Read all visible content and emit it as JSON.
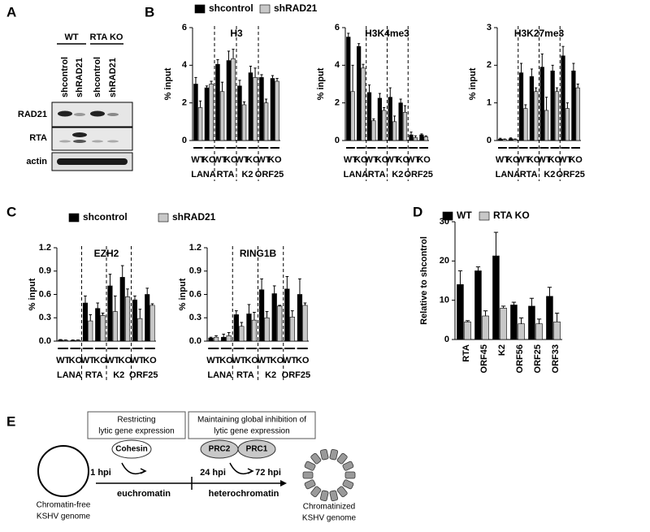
{
  "panels": [
    "A",
    "B",
    "C",
    "D",
    "E"
  ],
  "blot": {
    "groups": [
      "WT",
      "RTA KO"
    ],
    "lanes": [
      "shcontrol",
      "shRAD21",
      "shcontrol",
      "shRAD21"
    ],
    "proteins": [
      "RAD21",
      "RTA",
      "actin"
    ]
  },
  "chart_data": [
    {
      "type": "bar",
      "title": "H3",
      "ylabel": "% input",
      "categories": [
        "WT",
        "KO",
        "WT",
        "KO",
        "WT",
        "KO",
        "WT",
        "KO"
      ],
      "groups": [
        "LANA",
        "RTA",
        "K2",
        "ORF25"
      ],
      "series": [
        {
          "name": "shcontrol",
          "color": "#000000",
          "values": [
            3.0,
            2.8,
            4.05,
            4.25,
            2.9,
            3.6,
            3.35,
            3.3
          ],
          "errors": [
            0.35,
            0.1,
            0.25,
            0.5,
            0.3,
            0.35,
            0.15,
            0.15
          ]
        },
        {
          "name": "shRAD21",
          "color": "#c8c8c8",
          "values": [
            1.75,
            3.0,
            2.6,
            4.35,
            1.9,
            3.35,
            2.0,
            3.15
          ],
          "errors": [
            0.35,
            0.15,
            0.5,
            0.5,
            0.15,
            0.5,
            0.2,
            0.15
          ]
        }
      ],
      "ylim": [
        0,
        6
      ],
      "yticks": [
        0,
        2,
        4,
        6
      ]
    },
    {
      "type": "bar",
      "title": "H3K4me3",
      "ylabel": "% input",
      "categories": [
        "WT",
        "KO",
        "WT",
        "KO",
        "WT",
        "KO",
        "WT",
        "KO"
      ],
      "groups": [
        "LANA",
        "RTA",
        "K2",
        "ORF25"
      ],
      "series": [
        {
          "color": "#000000",
          "values": [
            5.5,
            5.0,
            2.55,
            2.25,
            2.3,
            2.0,
            0.3,
            0.3
          ],
          "errors": [
            0.2,
            0.15,
            0.4,
            0.25,
            0.5,
            0.2,
            0.15,
            0.05
          ]
        },
        {
          "color": "#c8c8c8",
          "values": [
            2.6,
            3.85,
            1.05,
            1.6,
            1.0,
            1.5,
            0.15,
            0.2
          ],
          "errors": [
            1.4,
            0.2,
            0.1,
            0.15,
            0.3,
            0.35,
            0.1,
            0.05
          ]
        }
      ],
      "ylim": [
        0,
        6
      ],
      "yticks": [
        0,
        2,
        4,
        6
      ]
    },
    {
      "type": "bar",
      "title": "H3K27me3",
      "ylabel": "% input",
      "categories": [
        "WT",
        "KO",
        "WT",
        "KO",
        "WT",
        "KO",
        "WT",
        "KO"
      ],
      "groups": [
        "LANA",
        "RTA",
        "K2",
        "ORF25"
      ],
      "series": [
        {
          "color": "#000000",
          "values": [
            0.04,
            0.05,
            1.8,
            1.7,
            1.95,
            1.85,
            2.25,
            1.85
          ],
          "errors": [
            0.02,
            0.02,
            0.25,
            0.2,
            0.35,
            0.15,
            0.25,
            0.2
          ]
        },
        {
          "color": "#c8c8c8",
          "values": [
            0.03,
            0.03,
            0.85,
            1.3,
            0.8,
            1.3,
            0.85,
            1.4
          ],
          "errors": [
            0.01,
            0.01,
            0.1,
            0.1,
            0.35,
            0.1,
            0.15,
            0.1
          ]
        }
      ],
      "ylim": [
        0,
        3
      ],
      "yticks": [
        0,
        1,
        2,
        3
      ]
    },
    {
      "type": "bar",
      "title": "EZH2",
      "ylabel": "% input",
      "categories": [
        "WT",
        "KO",
        "WT",
        "KO",
        "WT",
        "KO",
        "WT",
        "KO"
      ],
      "groups": [
        "LANA",
        "RTA",
        "K2",
        "ORF25"
      ],
      "series": [
        {
          "name": "shcontrol",
          "color": "#000000",
          "values": [
            0.015,
            0.01,
            0.49,
            0.42,
            0.71,
            0.82,
            0.53,
            0.6
          ],
          "errors": [
            0.005,
            0.005,
            0.09,
            0.07,
            0.15,
            0.15,
            0.05,
            0.08
          ]
        },
        {
          "name": "shRAD21",
          "color": "#c8c8c8",
          "values": [
            0.01,
            0.01,
            0.26,
            0.33,
            0.38,
            0.57,
            0.29,
            0.46
          ],
          "errors": [
            0.005,
            0.005,
            0.08,
            0.03,
            0.2,
            0.1,
            0.12,
            0.02
          ]
        }
      ],
      "ylim": [
        0,
        1.2
      ],
      "yticks": [
        {
          "value": 0,
          "label": "0.0"
        },
        0.3,
        0.6,
        0.9,
        1.2
      ]
    },
    {
      "type": "bar",
      "title": "RING1B",
      "ylabel": "% input",
      "categories": [
        "WT",
        "KO",
        "WT",
        "KO",
        "WT",
        "KO",
        "WT",
        "KO"
      ],
      "groups": [
        "LANA",
        "RTA",
        "K2",
        "ORF25"
      ],
      "series": [
        {
          "color": "#000000",
          "values": [
            0.04,
            0.05,
            0.34,
            0.35,
            0.66,
            0.61,
            0.67,
            0.6
          ],
          "errors": [
            0.01,
            0.04,
            0.05,
            0.12,
            0.14,
            0.1,
            0.16,
            0.2
          ]
        },
        {
          "color": "#c8c8c8",
          "values": [
            0.05,
            0.07,
            0.19,
            0.27,
            0.3,
            0.45,
            0.31,
            0.46
          ],
          "errors": [
            0.02,
            0.04,
            0.05,
            0.1,
            0.08,
            0.01,
            0.08,
            0.03
          ]
        }
      ],
      "ylim": [
        0,
        1.2
      ],
      "yticks": [
        {
          "value": 0,
          "label": "0.0"
        },
        0.3,
        0.6,
        0.9,
        1.2
      ]
    },
    {
      "type": "bar",
      "ylabel": "Relative to shcontrol",
      "categories": [
        "RTA",
        "ORF45",
        "K2",
        "ORF56",
        "ORF25",
        "ORF33"
      ],
      "series": [
        {
          "name": "WT",
          "color": "#000000",
          "values": [
            14,
            17.5,
            21.3,
            8.8,
            8.5,
            11
          ],
          "errors": [
            3.5,
            1,
            6,
            0.7,
            2,
            2.3
          ]
        },
        {
          "name": "RTA KO",
          "color": "#c8c8c8",
          "values": [
            4.5,
            6,
            8,
            4,
            4,
            4.5
          ],
          "errors": [
            0.3,
            1.3,
            0.5,
            1.5,
            1.2,
            2.2
          ]
        }
      ],
      "ylim": [
        0,
        30
      ],
      "yticks": [
        0,
        10,
        20,
        30
      ]
    }
  ],
  "diagram": {
    "boxes": [
      [
        "Restricting",
        "lytic gene expression"
      ],
      [
        "Maintaining global inhibition of",
        "lytic gene expression"
      ]
    ],
    "factors": [
      "Cohesin",
      "PRC2",
      "PRC1"
    ],
    "timepoints": [
      "1 hpi",
      "24 hpi",
      "72 hpi"
    ],
    "states": [
      "euchromatin",
      "heterochromatin"
    ],
    "start": [
      "Chromatin-free",
      "KSHV genome"
    ],
    "end": [
      "Chromatinized",
      "KSHV genome"
    ]
  }
}
